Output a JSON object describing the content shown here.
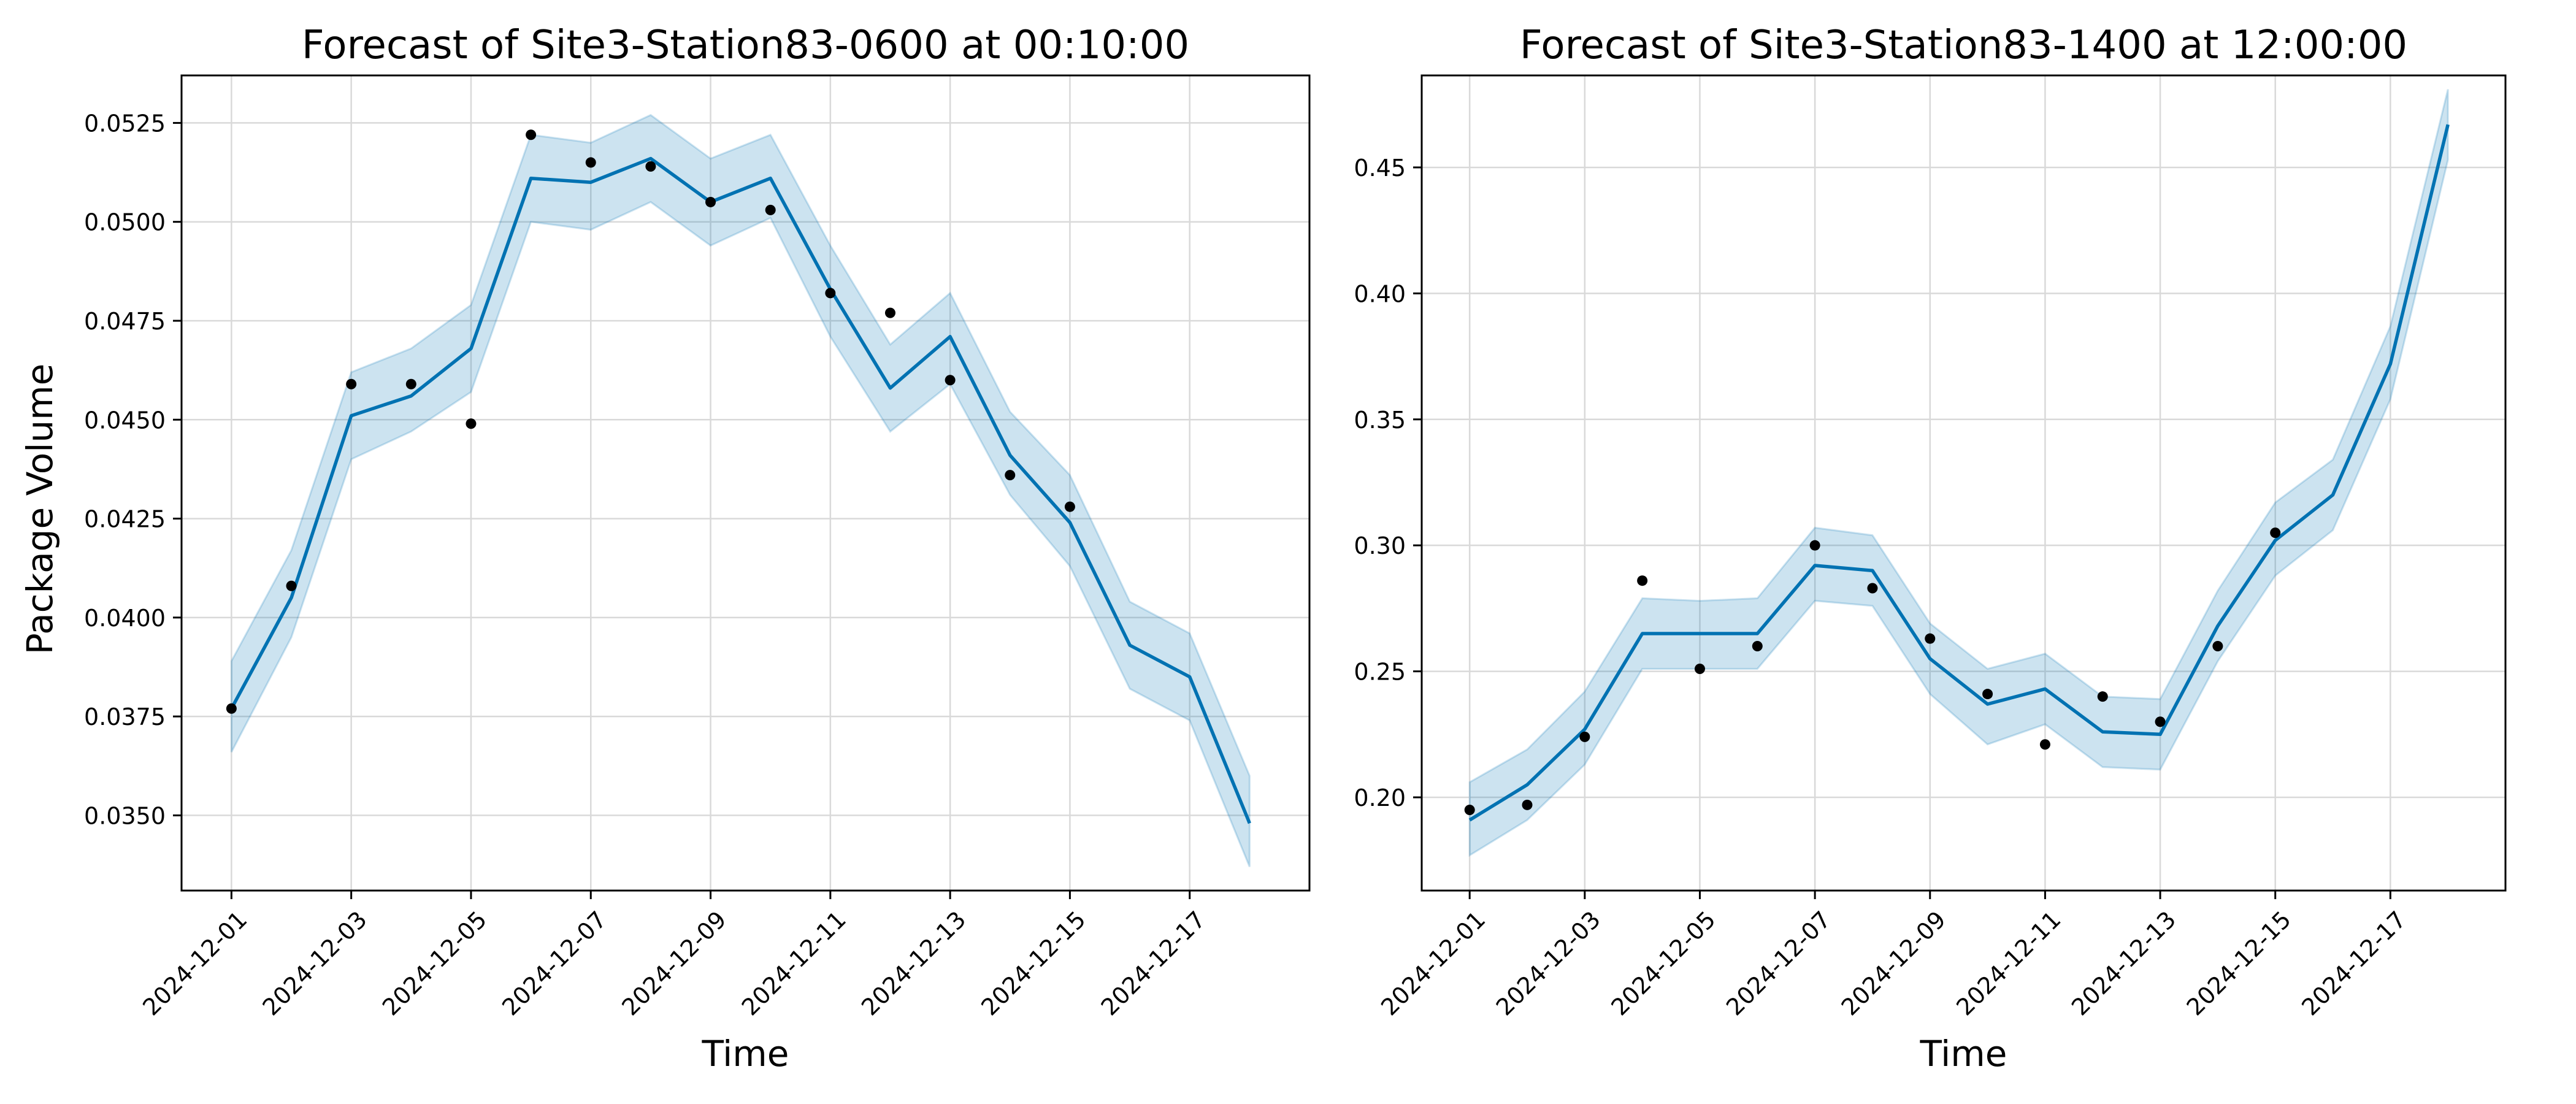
{
  "figure": {
    "ylabel": "Package Volume",
    "colors": {
      "forecast_line": "#0072B2",
      "interval_fill": "#0072B2",
      "observed_points": "#000000",
      "grid": "#d9d9d9",
      "axes": "#000000"
    }
  },
  "chart_data": [
    {
      "type": "line",
      "title": "Forecast of Site3-Station83-0600 at 00:10:00",
      "xlabel": "Time",
      "ylabel": "Package Volume",
      "grid": true,
      "x_dates": [
        "2024-12-01",
        "2024-12-02",
        "2024-12-03",
        "2024-12-04",
        "2024-12-05",
        "2024-12-06",
        "2024-12-07",
        "2024-12-08",
        "2024-12-09",
        "2024-12-10",
        "2024-12-11",
        "2024-12-12",
        "2024-12-13",
        "2024-12-14",
        "2024-12-15",
        "2024-12-16",
        "2024-12-17",
        "2024-12-18"
      ],
      "xtick_labels": [
        "2024-12-01",
        "2024-12-03",
        "2024-12-05",
        "2024-12-07",
        "2024-12-09",
        "2024-12-11",
        "2024-12-13",
        "2024-12-15",
        "2024-12-17"
      ],
      "xlim": [
        "2024-11-30T04:00",
        "2024-12-19T00:00"
      ],
      "ylim": [
        0.0331,
        0.0537
      ],
      "yticks": [
        0.035,
        0.0375,
        0.04,
        0.0425,
        0.045,
        0.0475,
        0.05,
        0.0525
      ],
      "ytick_labels": [
        "0.0350",
        "0.0375",
        "0.0400",
        "0.0425",
        "0.0450",
        "0.0475",
        "0.0500",
        "0.0525"
      ],
      "forecast": [
        0.0377,
        0.0405,
        0.0451,
        0.0456,
        0.0468,
        0.0511,
        0.051,
        0.0516,
        0.0505,
        0.0511,
        0.0483,
        0.0458,
        0.0471,
        0.0441,
        0.0424,
        0.0393,
        0.0385,
        0.0348
      ],
      "lower": [
        0.0366,
        0.0395,
        0.044,
        0.0447,
        0.0457,
        0.05,
        0.0498,
        0.0505,
        0.0494,
        0.0501,
        0.0471,
        0.0447,
        0.0459,
        0.0431,
        0.0413,
        0.0382,
        0.0374,
        0.0337
      ],
      "upper": [
        0.0389,
        0.0417,
        0.0462,
        0.0468,
        0.0479,
        0.0522,
        0.052,
        0.0527,
        0.0516,
        0.0522,
        0.0494,
        0.0469,
        0.0482,
        0.0452,
        0.0436,
        0.0404,
        0.0396,
        0.036
      ],
      "observed": [
        0.0377,
        0.0408,
        0.0459,
        0.0459,
        0.0449,
        0.0522,
        0.0515,
        0.0514,
        0.0505,
        0.0503,
        0.0482,
        0.0477,
        0.046,
        0.0436,
        0.0428
      ]
    },
    {
      "type": "line",
      "title": "Forecast of Site3-Station83-1400 at 12:00:00",
      "xlabel": "Time",
      "grid": true,
      "x_dates": [
        "2024-12-01",
        "2024-12-02",
        "2024-12-03",
        "2024-12-04",
        "2024-12-05",
        "2024-12-06",
        "2024-12-07",
        "2024-12-08",
        "2024-12-09",
        "2024-12-10",
        "2024-12-11",
        "2024-12-12",
        "2024-12-13",
        "2024-12-14",
        "2024-12-15",
        "2024-12-16",
        "2024-12-17",
        "2024-12-18"
      ],
      "xtick_labels": [
        "2024-12-01",
        "2024-12-03",
        "2024-12-05",
        "2024-12-07",
        "2024-12-09",
        "2024-12-11",
        "2024-12-13",
        "2024-12-15",
        "2024-12-17"
      ],
      "xlim": [
        "2024-11-30T04:00",
        "2024-12-19T00:00"
      ],
      "ylim": [
        0.163,
        0.4865
      ],
      "yticks": [
        0.2,
        0.25,
        0.3,
        0.35,
        0.4,
        0.45
      ],
      "ytick_labels": [
        "0.20",
        "0.25",
        "0.30",
        "0.35",
        "0.40",
        "0.45"
      ],
      "forecast": [
        0.191,
        0.205,
        0.227,
        0.265,
        0.265,
        0.265,
        0.292,
        0.29,
        0.255,
        0.237,
        0.243,
        0.226,
        0.225,
        0.268,
        0.302,
        0.32,
        0.372,
        0.467
      ],
      "lower": [
        0.177,
        0.191,
        0.213,
        0.251,
        0.251,
        0.251,
        0.278,
        0.276,
        0.241,
        0.221,
        0.229,
        0.212,
        0.211,
        0.254,
        0.288,
        0.306,
        0.358,
        0.453
      ],
      "upper": [
        0.206,
        0.219,
        0.242,
        0.279,
        0.278,
        0.279,
        0.307,
        0.304,
        0.269,
        0.251,
        0.257,
        0.24,
        0.239,
        0.282,
        0.317,
        0.334,
        0.387,
        0.481
      ],
      "observed": [
        0.195,
        0.197,
        0.224,
        0.286,
        0.251,
        0.26,
        0.3,
        0.283,
        0.263,
        0.241,
        0.221,
        0.24,
        0.23,
        0.26,
        0.305
      ]
    }
  ]
}
